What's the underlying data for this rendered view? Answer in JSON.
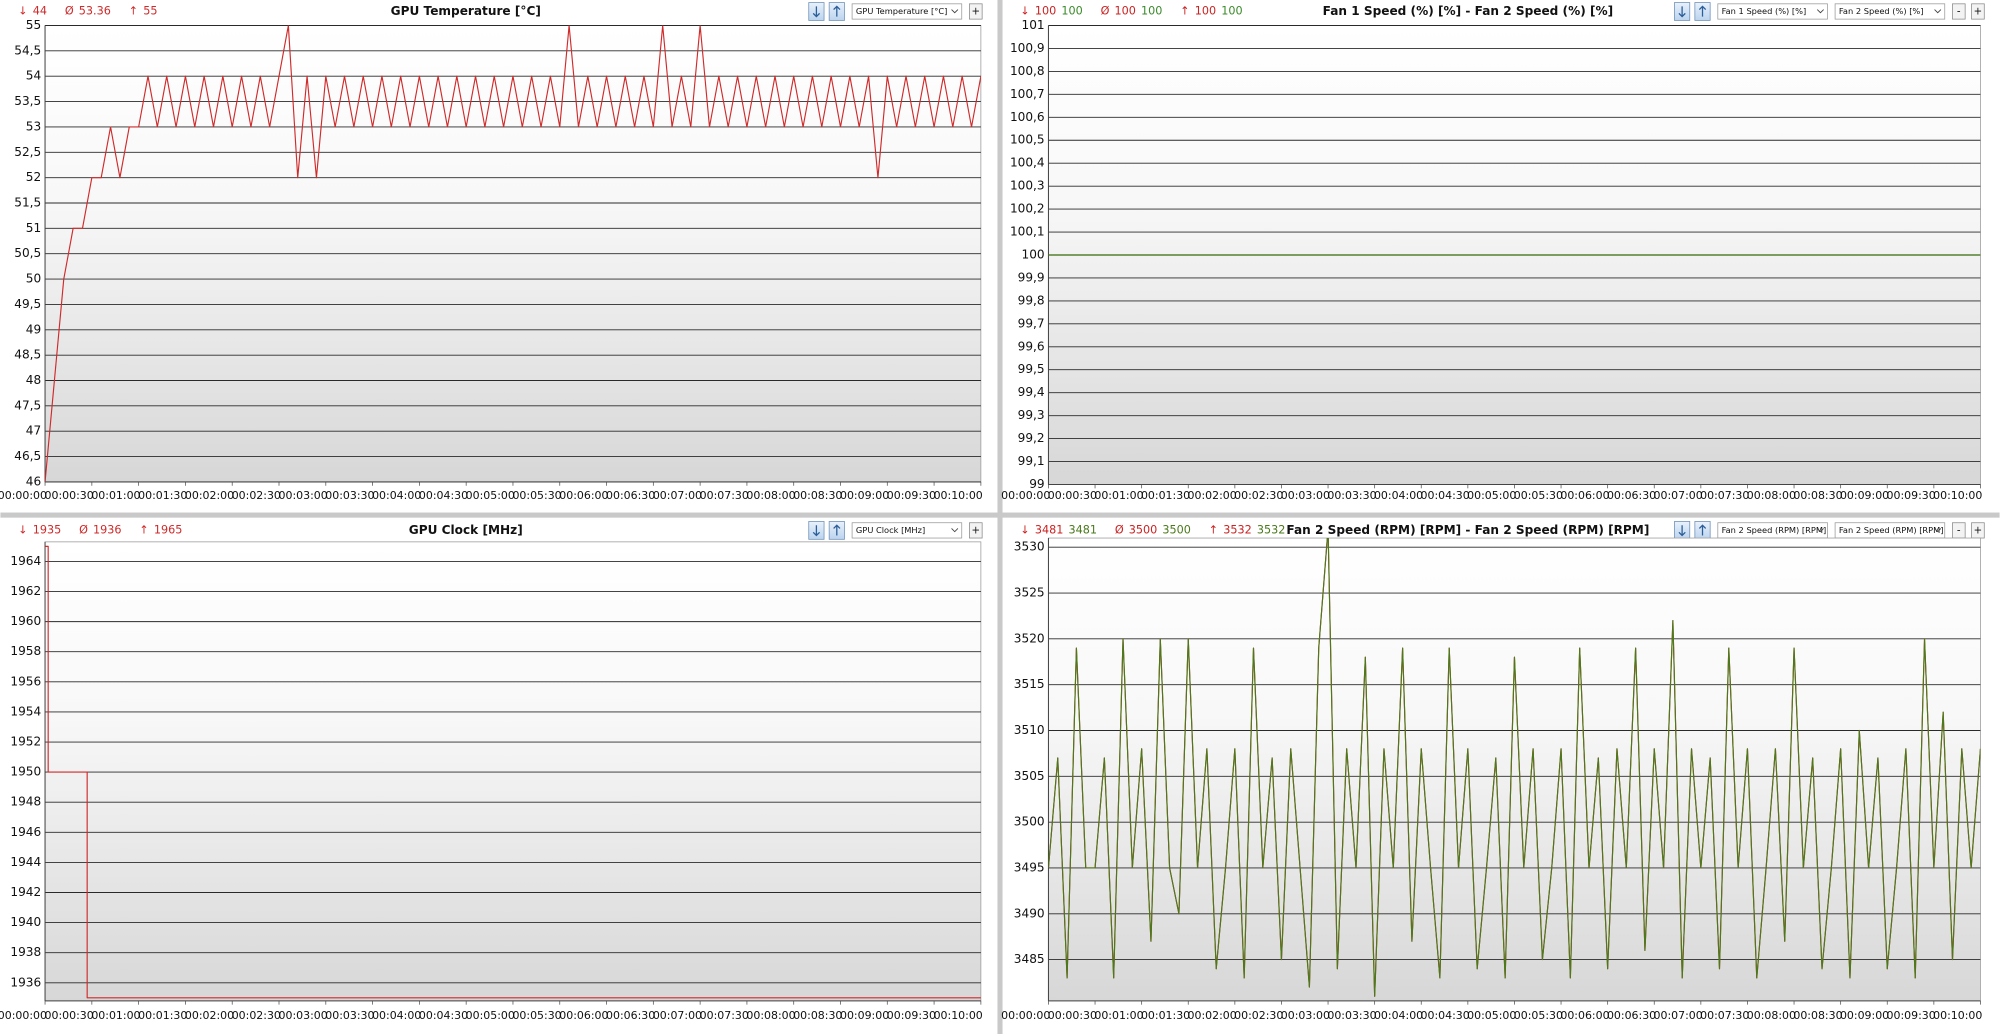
{
  "chart_data": [
    {
      "type": "line",
      "title": "GPU Temperature [°C]",
      "stat_symbols": [
        "↓",
        "Ø",
        "↑"
      ],
      "buttons": [
        "+"
      ],
      "grid": true,
      "xlim": [
        0,
        600
      ],
      "ylim": [
        46,
        55
      ],
      "xticks": [
        {
          "value": 0,
          "label": "00:00:00"
        },
        {
          "value": 30,
          "label": "00:00:30"
        },
        {
          "value": 60,
          "label": "00:01:00"
        },
        {
          "value": 90,
          "label": "00:01:30"
        },
        {
          "value": 120,
          "label": "00:02:00"
        },
        {
          "value": 150,
          "label": "00:02:30"
        },
        {
          "value": 180,
          "label": "00:03:00"
        },
        {
          "value": 210,
          "label": "00:03:30"
        },
        {
          "value": 240,
          "label": "00:04:00"
        },
        {
          "value": 270,
          "label": "00:04:30"
        },
        {
          "value": 300,
          "label": "00:05:00"
        },
        {
          "value": 330,
          "label": "00:05:30"
        },
        {
          "value": 360,
          "label": "00:06:00"
        },
        {
          "value": 390,
          "label": "00:06:30"
        },
        {
          "value": 420,
          "label": "00:07:00"
        },
        {
          "value": 450,
          "label": "00:07:30"
        },
        {
          "value": 480,
          "label": "00:08:00"
        },
        {
          "value": 510,
          "label": "00:08:30"
        },
        {
          "value": 540,
          "label": "00:09:00"
        },
        {
          "value": 570,
          "label": "00:09:30"
        },
        {
          "value": 600,
          "label": "00:10:00"
        }
      ],
      "yticks": [
        46,
        {
          "value": 46.5,
          "label": "46,5"
        },
        47,
        {
          "value": 47.5,
          "label": "47,5"
        },
        48,
        {
          "value": 48.5,
          "label": "48,5"
        },
        49,
        {
          "value": 49.5,
          "label": "49,5"
        },
        50,
        {
          "value": 50.5,
          "label": "50,5"
        },
        51,
        {
          "value": 51.5,
          "label": "51,5"
        },
        52,
        {
          "value": 52.5,
          "label": "52,5"
        },
        53,
        {
          "value": 53.5,
          "label": "53,5"
        },
        54,
        {
          "value": 54.5,
          "label": "54,5"
        },
        55
      ],
      "x": [
        0,
        6,
        12,
        18,
        24,
        30,
        36,
        42,
        48,
        54,
        60,
        66,
        72,
        78,
        84,
        90,
        96,
        102,
        108,
        114,
        120,
        126,
        132,
        138,
        144,
        150,
        156,
        162,
        168,
        174,
        180,
        186,
        192,
        198,
        204,
        210,
        216,
        222,
        228,
        234,
        240,
        246,
        252,
        258,
        264,
        270,
        276,
        282,
        288,
        294,
        300,
        306,
        312,
        318,
        324,
        330,
        336,
        342,
        348,
        354,
        360,
        366,
        372,
        378,
        384,
        390,
        396,
        402,
        408,
        414,
        420,
        426,
        432,
        438,
        444,
        450,
        456,
        462,
        468,
        474,
        480,
        486,
        492,
        498,
        504,
        510,
        516,
        522,
        528,
        534,
        540,
        546,
        552,
        558,
        564,
        570,
        576,
        582,
        588,
        594,
        600
      ],
      "series": [
        {
          "name": "GPU Temperature [°C]",
          "color": "#d02a2a",
          "min": 44,
          "avg": 53.36,
          "max": 55,
          "values": [
            46,
            48,
            50,
            51,
            51,
            52,
            52,
            53,
            52,
            53,
            53,
            54,
            53,
            54,
            53,
            54,
            53,
            54,
            53,
            54,
            53,
            54,
            53,
            54,
            53,
            54,
            55,
            52,
            54,
            52,
            54,
            53,
            54,
            53,
            54,
            53,
            54,
            53,
            54,
            53,
            54,
            53,
            54,
            53,
            54,
            53,
            54,
            53,
            54,
            53,
            54,
            53,
            54,
            53,
            54,
            53,
            55,
            53,
            54,
            53,
            54,
            53,
            54,
            53,
            54,
            53,
            55,
            53,
            54,
            53,
            55,
            53,
            54,
            53,
            54,
            53,
            54,
            53,
            54,
            53,
            54,
            53,
            54,
            53,
            54,
            53,
            54,
            53,
            54,
            52,
            54,
            53,
            54,
            53,
            54,
            53,
            54,
            53,
            54,
            53,
            54
          ]
        }
      ]
    },
    {
      "type": "line",
      "title": "Fan 1 Speed (%) [%]  -  Fan 2 Speed (%) [%]",
      "stat_symbols": [
        "↓",
        "Ø",
        "↑"
      ],
      "buttons": [
        "-",
        "+"
      ],
      "grid": true,
      "xlim": [
        0,
        600
      ],
      "ylim": [
        99,
        101
      ],
      "xticks": [
        {
          "value": 0,
          "label": "00:00:00"
        },
        {
          "value": 30,
          "label": "00:00:30"
        },
        {
          "value": 60,
          "label": "00:01:00"
        },
        {
          "value": 90,
          "label": "00:01:30"
        },
        {
          "value": 120,
          "label": "00:02:00"
        },
        {
          "value": 150,
          "label": "00:02:30"
        },
        {
          "value": 180,
          "label": "00:03:00"
        },
        {
          "value": 210,
          "label": "00:03:30"
        },
        {
          "value": 240,
          "label": "00:04:00"
        },
        {
          "value": 270,
          "label": "00:04:30"
        },
        {
          "value": 300,
          "label": "00:05:00"
        },
        {
          "value": 330,
          "label": "00:05:30"
        },
        {
          "value": 360,
          "label": "00:06:00"
        },
        {
          "value": 390,
          "label": "00:06:30"
        },
        {
          "value": 420,
          "label": "00:07:00"
        },
        {
          "value": 450,
          "label": "00:07:30"
        },
        {
          "value": 480,
          "label": "00:08:00"
        },
        {
          "value": 510,
          "label": "00:08:30"
        },
        {
          "value": 540,
          "label": "00:09:00"
        },
        {
          "value": 570,
          "label": "00:09:30"
        },
        {
          "value": 600,
          "label": "00:10:00"
        }
      ],
      "yticks": [
        99,
        {
          "value": 99.1,
          "label": "99,1"
        },
        {
          "value": 99.2,
          "label": "99,2"
        },
        {
          "value": 99.3,
          "label": "99,3"
        },
        {
          "value": 99.4,
          "label": "99,4"
        },
        {
          "value": 99.5,
          "label": "99,5"
        },
        {
          "value": 99.6,
          "label": "99,6"
        },
        {
          "value": 99.7,
          "label": "99,7"
        },
        {
          "value": 99.8,
          "label": "99,8"
        },
        {
          "value": 99.9,
          "label": "99,9"
        },
        100,
        {
          "value": 100.1,
          "label": "100,1"
        },
        {
          "value": 100.2,
          "label": "100,2"
        },
        {
          "value": 100.3,
          "label": "100,3"
        },
        {
          "value": 100.4,
          "label": "100,4"
        },
        {
          "value": 100.5,
          "label": "100,5"
        },
        {
          "value": 100.6,
          "label": "100,6"
        },
        {
          "value": 100.7,
          "label": "100,7"
        },
        {
          "value": 100.8,
          "label": "100,8"
        },
        {
          "value": 100.9,
          "label": "100,9"
        },
        101
      ],
      "x": [
        0,
        600
      ],
      "series": [
        {
          "name": "Fan 1 Speed (%) [%]",
          "color": "#cc2222",
          "min": 100,
          "avg": 100,
          "max": 100,
          "values": [
            100,
            100
          ]
        },
        {
          "name": "Fan 2 Speed (%) [%]",
          "color": "#3a8a2a",
          "min": 100,
          "avg": 100,
          "max": 100,
          "values": [
            100,
            100
          ]
        }
      ]
    },
    {
      "type": "line",
      "title": "GPU Clock [MHz]",
      "stat_symbols": [
        "↓",
        "Ø",
        "↑"
      ],
      "buttons": [
        "+"
      ],
      "grid": true,
      "xlim": [
        0,
        600
      ],
      "ylim": [
        1934.8,
        1965.3
      ],
      "xticks": [
        {
          "value": 0,
          "label": "00:00:00"
        },
        {
          "value": 30,
          "label": "00:00:30"
        },
        {
          "value": 60,
          "label": "00:01:00"
        },
        {
          "value": 90,
          "label": "00:01:30"
        },
        {
          "value": 120,
          "label": "00:02:00"
        },
        {
          "value": 150,
          "label": "00:02:30"
        },
        {
          "value": 180,
          "label": "00:03:00"
        },
        {
          "value": 210,
          "label": "00:03:30"
        },
        {
          "value": 240,
          "label": "00:04:00"
        },
        {
          "value": 270,
          "label": "00:04:30"
        },
        {
          "value": 300,
          "label": "00:05:00"
        },
        {
          "value": 330,
          "label": "00:05:30"
        },
        {
          "value": 360,
          "label": "00:06:00"
        },
        {
          "value": 390,
          "label": "00:06:30"
        },
        {
          "value": 420,
          "label": "00:07:00"
        },
        {
          "value": 450,
          "label": "00:07:30"
        },
        {
          "value": 480,
          "label": "00:08:00"
        },
        {
          "value": 510,
          "label": "00:08:30"
        },
        {
          "value": 540,
          "label": "00:09:00"
        },
        {
          "value": 570,
          "label": "00:09:30"
        },
        {
          "value": 600,
          "label": "00:10:00"
        }
      ],
      "yticks": [
        1936,
        1938,
        1940,
        1942,
        1944,
        1946,
        1948,
        1950,
        1952,
        1954,
        1956,
        1958,
        1960,
        1962,
        1964
      ],
      "x": [
        0,
        2,
        2,
        27,
        27,
        600
      ],
      "series": [
        {
          "name": "GPU Clock [MHz]",
          "color": "#d02a2a",
          "min": 1935,
          "avg": 1936,
          "max": 1965,
          "values": [
            1965,
            1965,
            1950,
            1950,
            1935,
            1935
          ]
        }
      ]
    },
    {
      "type": "line",
      "title": "Fan 2 Speed (RPM) [RPM]  -  Fan 2 Speed (RPM) [RPM]",
      "stat_symbols": [
        "↓",
        "Ø",
        "↑"
      ],
      "buttons": [
        "-",
        "+"
      ],
      "grid": true,
      "xlim": [
        0,
        600
      ],
      "ylim": [
        3480.5,
        3531
      ],
      "xticks": [
        {
          "value": 0,
          "label": "00:00:00"
        },
        {
          "value": 30,
          "label": "00:00:30"
        },
        {
          "value": 60,
          "label": "00:01:00"
        },
        {
          "value": 90,
          "label": "00:01:30"
        },
        {
          "value": 120,
          "label": "00:02:00"
        },
        {
          "value": 150,
          "label": "00:02:30"
        },
        {
          "value": 180,
          "label": "00:03:00"
        },
        {
          "value": 210,
          "label": "00:03:30"
        },
        {
          "value": 240,
          "label": "00:04:00"
        },
        {
          "value": 270,
          "label": "00:04:30"
        },
        {
          "value": 300,
          "label": "00:05:00"
        },
        {
          "value": 330,
          "label": "00:05:30"
        },
        {
          "value": 360,
          "label": "00:06:00"
        },
        {
          "value": 390,
          "label": "00:06:30"
        },
        {
          "value": 420,
          "label": "00:07:00"
        },
        {
          "value": 450,
          "label": "00:07:30"
        },
        {
          "value": 480,
          "label": "00:08:00"
        },
        {
          "value": 510,
          "label": "00:08:30"
        },
        {
          "value": 540,
          "label": "00:09:00"
        },
        {
          "value": 570,
          "label": "00:09:30"
        },
        {
          "value": 600,
          "label": "00:10:00"
        }
      ],
      "yticks": [
        3485,
        3490,
        3495,
        3500,
        3505,
        3510,
        3515,
        3520,
        3525,
        3530
      ],
      "x": [
        0,
        6,
        12,
        18,
        24,
        30,
        36,
        42,
        48,
        54,
        60,
        66,
        72,
        78,
        84,
        90,
        96,
        102,
        108,
        114,
        120,
        126,
        132,
        138,
        144,
        150,
        156,
        162,
        168,
        174,
        180,
        186,
        192,
        198,
        204,
        210,
        216,
        222,
        228,
        234,
        240,
        246,
        252,
        258,
        264,
        270,
        276,
        282,
        288,
        294,
        300,
        306,
        312,
        318,
        324,
        330,
        336,
        342,
        348,
        354,
        360,
        366,
        372,
        378,
        384,
        390,
        396,
        402,
        408,
        414,
        420,
        426,
        432,
        438,
        444,
        450,
        456,
        462,
        468,
        474,
        480,
        486,
        492,
        498,
        504,
        510,
        516,
        522,
        528,
        534,
        540,
        546,
        552,
        558,
        564,
        570,
        576,
        582,
        588,
        594,
        600
      ],
      "series": [
        {
          "name": "Fan 2 Speed (RPM) [RPM]",
          "color": "#cc2222",
          "min": 3481,
          "avg": 3500,
          "max": 3532,
          "values": [
            3495,
            3507,
            3483,
            3519,
            3495,
            3495,
            3507,
            3483,
            3520,
            3495,
            3508,
            3487,
            3520,
            3495,
            3490,
            3520,
            3495,
            3508,
            3484,
            3495,
            3508,
            3483,
            3519,
            3495,
            3507,
            3485,
            3508,
            3495,
            3482,
            3519,
            3532,
            3484,
            3508,
            3495,
            3518,
            3481,
            3508,
            3495,
            3519,
            3487,
            3508,
            3495,
            3483,
            3519,
            3495,
            3508,
            3484,
            3495,
            3507,
            3483,
            3518,
            3495,
            3508,
            3485,
            3495,
            3508,
            3483,
            3519,
            3495,
            3507,
            3484,
            3508,
            3495,
            3519,
            3486,
            3508,
            3495,
            3522,
            3483,
            3508,
            3495,
            3507,
            3484,
            3519,
            3495,
            3508,
            3483,
            3495,
            3508,
            3487,
            3519,
            3495,
            3507,
            3484,
            3495,
            3508,
            3483,
            3510,
            3495,
            3507,
            3484,
            3495,
            3508,
            3483,
            3520,
            3495,
            3512,
            3485,
            3508,
            3495,
            3508
          ]
        },
        {
          "name": "Fan 2 Speed (RPM) [RPM]",
          "color": "#4b7a1b",
          "min": 3481,
          "avg": 3500,
          "max": 3532,
          "values": [
            3495,
            3507,
            3483,
            3519,
            3495,
            3495,
            3507,
            3483,
            3520,
            3495,
            3508,
            3487,
            3520,
            3495,
            3490,
            3520,
            3495,
            3508,
            3484,
            3495,
            3508,
            3483,
            3519,
            3495,
            3507,
            3485,
            3508,
            3495,
            3482,
            3519,
            3532,
            3484,
            3508,
            3495,
            3518,
            3481,
            3508,
            3495,
            3519,
            3487,
            3508,
            3495,
            3483,
            3519,
            3495,
            3508,
            3484,
            3495,
            3507,
            3483,
            3518,
            3495,
            3508,
            3485,
            3495,
            3508,
            3483,
            3519,
            3495,
            3507,
            3484,
            3508,
            3495,
            3519,
            3486,
            3508,
            3495,
            3522,
            3483,
            3508,
            3495,
            3507,
            3484,
            3519,
            3495,
            3508,
            3483,
            3495,
            3508,
            3487,
            3519,
            3495,
            3507,
            3484,
            3495,
            3508,
            3483,
            3510,
            3495,
            3507,
            3484,
            3495,
            3508,
            3483,
            3520,
            3495,
            3512,
            3485,
            3508,
            3495,
            3508
          ]
        }
      ]
    }
  ]
}
